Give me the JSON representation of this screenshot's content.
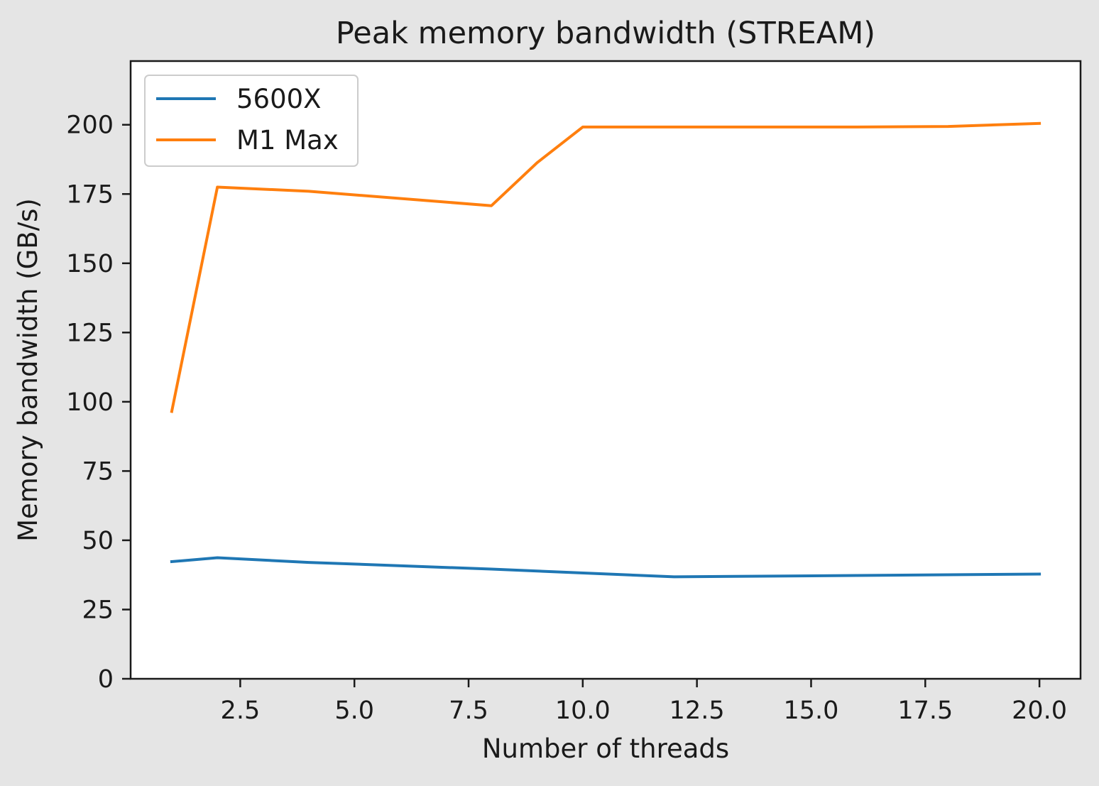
{
  "chart_data": {
    "type": "line",
    "title": "Peak memory bandwidth (STREAM)",
    "xlabel": "Number of threads",
    "ylabel": "Memory bandwidth (GB/s)",
    "xlim": [
      0.1,
      20.9
    ],
    "ylim": [
      0,
      223
    ],
    "xticks": [
      2.5,
      5.0,
      7.5,
      10.0,
      12.5,
      15.0,
      17.5,
      20.0
    ],
    "xtick_labels": [
      "2.5",
      "5.0",
      "7.5",
      "10.0",
      "12.5",
      "15.0",
      "17.5",
      "20.0"
    ],
    "yticks": [
      0,
      25,
      50,
      75,
      100,
      125,
      150,
      175,
      200
    ],
    "ytick_labels": [
      "0",
      "25",
      "50",
      "75",
      "100",
      "125",
      "150",
      "175",
      "200"
    ],
    "grid": false,
    "legend_position": "top-left",
    "series": [
      {
        "name": "5600X",
        "color": "#1f77b4",
        "x": [
          1,
          2,
          4,
          8,
          12,
          16,
          20
        ],
        "y": [
          42.3,
          43.7,
          42.0,
          39.6,
          36.8,
          37.3,
          37.8
        ]
      },
      {
        "name": "M1 Max",
        "color": "#ff7f0e",
        "x": [
          1,
          2,
          4,
          8,
          9,
          10,
          12,
          14,
          16,
          18,
          20
        ],
        "y": [
          96.5,
          177.5,
          176.0,
          170.8,
          186.3,
          199.2,
          199.2,
          199.2,
          199.2,
          199.4,
          200.5
        ]
      }
    ]
  }
}
